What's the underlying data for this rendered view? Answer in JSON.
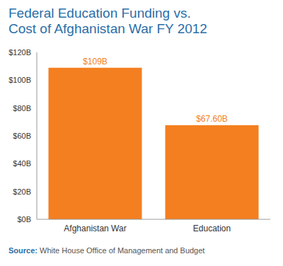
{
  "chart_data": {
    "type": "bar",
    "title": "Federal Education Funding vs.\nCost of Afghanistan War FY 2012",
    "categories": [
      "Afghanistan War",
      "Education"
    ],
    "values": [
      109,
      67.6
    ],
    "value_labels": [
      "$109B",
      "$67.60B"
    ],
    "data_labels": true,
    "color": "#f47f20",
    "ylim": [
      0,
      120
    ],
    "yticks": [
      {
        "value": 0,
        "label": "$0B"
      },
      {
        "value": 20,
        "label": "$20B"
      },
      {
        "value": 40,
        "label": "$40B"
      },
      {
        "value": 60,
        "label": "$60B"
      },
      {
        "value": 80,
        "label": "$80B"
      },
      {
        "value": 100,
        "label": "$100B"
      },
      {
        "value": 120,
        "label": "$120B"
      }
    ],
    "grid": false,
    "source_label": "Source:",
    "source": "White House Office of Management and Budget"
  }
}
